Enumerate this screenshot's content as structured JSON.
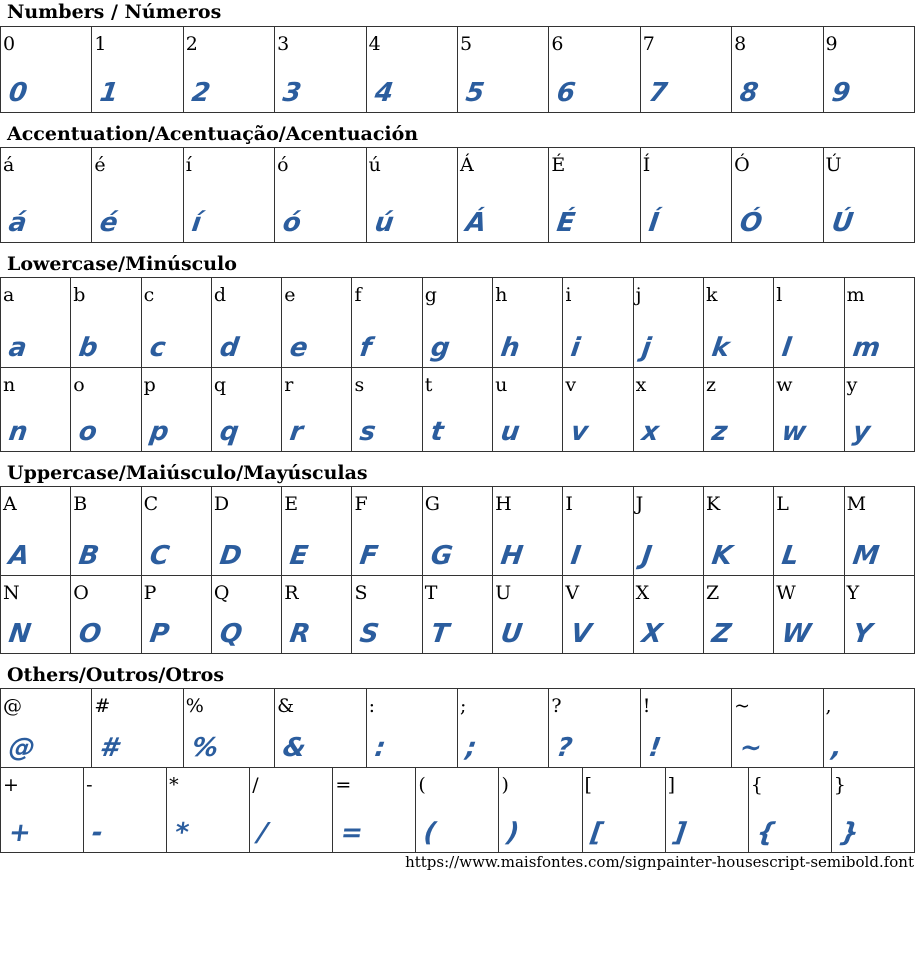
{
  "glyph_color": "#2b5d9e",
  "sections": [
    {
      "title": "Numbers / Números",
      "rows": [
        [
          "0",
          "1",
          "2",
          "3",
          "4",
          "5",
          "6",
          "7",
          "8",
          "9"
        ]
      ]
    },
    {
      "title": "Accentuation/Acentuação/Acentuación",
      "rows": [
        [
          "á",
          "é",
          "í",
          "ó",
          "ú",
          "Á",
          "É",
          "Í",
          "Ó",
          "Ú"
        ]
      ]
    },
    {
      "title": "Lowercase/Minúsculo",
      "rows": [
        [
          "a",
          "b",
          "c",
          "d",
          "e",
          "f",
          "g",
          "h",
          "i",
          "j",
          "k",
          "l",
          "m"
        ],
        [
          "n",
          "o",
          "p",
          "q",
          "r",
          "s",
          "t",
          "u",
          "v",
          "x",
          "z",
          "w",
          "y"
        ]
      ]
    },
    {
      "title": "Uppercase/Maiúsculo/Mayúsculas",
      "rows": [
        [
          "A",
          "B",
          "C",
          "D",
          "E",
          "F",
          "G",
          "H",
          "I",
          "J",
          "K",
          "L",
          "M"
        ],
        [
          "N",
          "O",
          "P",
          "Q",
          "R",
          "S",
          "T",
          "U",
          "V",
          "X",
          "Z",
          "W",
          "Y"
        ]
      ]
    },
    {
      "title": "Others/Outros/Otros",
      "rows": [
        [
          "@",
          "#",
          "%",
          "&",
          ":",
          ";",
          "?",
          "!",
          "~",
          ","
        ],
        [
          "+",
          "-",
          "*",
          "/",
          "=",
          "(",
          ")",
          "[",
          "]",
          "{",
          "}"
        ]
      ]
    }
  ],
  "footer_url": "https://www.maisfontes.com/signpainter-housescript-semibold.font"
}
